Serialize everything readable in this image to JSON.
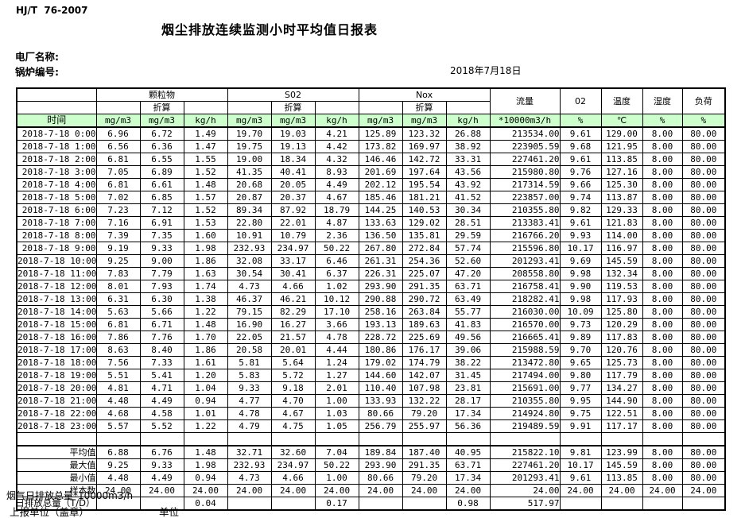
{
  "page": {
    "standard_code": "HJ/T  76-2007",
    "title": "烟尘排放连续监测小时平均值日报表",
    "plant_label": "电厂名称:",
    "boiler_label": "锅炉编号:",
    "date": "2018年7月18日",
    "footer_note": "烟气日排放总量*10000m3/h",
    "report_unit_label": "上报单位（盖章）",
    "unit_label": "单位"
  },
  "colors": {
    "header_green": "#ccffcc",
    "border": "#000000",
    "background": "#ffffff"
  },
  "table": {
    "head": {
      "time": "时间",
      "pm": "颗粒物",
      "so2": "S02",
      "nox": "Nox",
      "flow": "流量",
      "o2": "02",
      "temp": "温度",
      "humidity": "湿度",
      "load": "负荷",
      "converted": "折算"
    },
    "units": [
      "mg/m3",
      "mg/m3",
      "kg/h",
      "mg/m3",
      "mg/m3",
      "kg/h",
      "mg/m3",
      "mg/m3",
      "kg/h",
      "*10000m3/h",
      "%",
      "℃",
      "%",
      "%"
    ],
    "rows": [
      {
        "time": "2018-7-18 0:00",
        "values": [
          "6.96",
          "6.72",
          "1.49",
          "19.70",
          "19.03",
          "4.21",
          "125.89",
          "123.32",
          "26.88",
          "213534.00",
          "9.61",
          "129.00",
          "8.00",
          "80.00"
        ]
      },
      {
        "time": "2018-7-18 1:00",
        "values": [
          "6.56",
          "6.36",
          "1.47",
          "19.75",
          "19.13",
          "4.42",
          "173.82",
          "169.97",
          "38.92",
          "223905.59",
          "9.68",
          "121.95",
          "8.00",
          "80.00"
        ]
      },
      {
        "time": "2018-7-18 2:00",
        "values": [
          "6.81",
          "6.55",
          "1.55",
          "19.00",
          "18.34",
          "4.32",
          "146.46",
          "142.72",
          "33.31",
          "227461.20",
          "9.61",
          "113.85",
          "8.00",
          "80.00"
        ]
      },
      {
        "time": "2018-7-18 3:00",
        "values": [
          "7.05",
          "6.89",
          "1.52",
          "41.35",
          "40.41",
          "8.93",
          "201.69",
          "197.64",
          "43.56",
          "215980.80",
          "9.76",
          "127.16",
          "8.00",
          "80.00"
        ]
      },
      {
        "time": "2018-7-18 4:00",
        "values": [
          "6.81",
          "6.61",
          "1.48",
          "20.68",
          "20.05",
          "4.49",
          "202.12",
          "195.54",
          "43.92",
          "217314.59",
          "9.66",
          "125.30",
          "8.00",
          "80.00"
        ]
      },
      {
        "time": "2018-7-18 5:00",
        "values": [
          "7.02",
          "6.85",
          "1.57",
          "20.87",
          "20.37",
          "4.67",
          "185.46",
          "181.21",
          "41.52",
          "223857.00",
          "9.74",
          "113.87",
          "8.00",
          "80.00"
        ]
      },
      {
        "time": "2018-7-18 6:00",
        "values": [
          "7.23",
          "7.12",
          "1.52",
          "89.34",
          "87.92",
          "18.79",
          "144.25",
          "140.53",
          "30.34",
          "210355.80",
          "9.82",
          "129.33",
          "8.00",
          "80.00"
        ]
      },
      {
        "time": "2018-7-18 7:00",
        "values": [
          "7.16",
          "6.91",
          "1.53",
          "22.80",
          "22.01",
          "4.87",
          "133.63",
          "129.02",
          "28.51",
          "213383.41",
          "9.61",
          "121.83",
          "8.00",
          "80.00"
        ]
      },
      {
        "time": "2018-7-18 8:00",
        "values": [
          "7.39",
          "7.35",
          "1.60",
          "10.91",
          "10.79",
          "2.36",
          "136.50",
          "135.81",
          "29.59",
          "216766.20",
          "9.93",
          "114.00",
          "8.00",
          "80.00"
        ]
      },
      {
        "time": "2018-7-18 9:00",
        "values": [
          "9.19",
          "9.33",
          "1.98",
          "232.93",
          "234.97",
          "50.22",
          "267.80",
          "272.84",
          "57.74",
          "215596.80",
          "10.17",
          "116.97",
          "8.00",
          "80.00"
        ]
      },
      {
        "time": "2018-7-18 10:00",
        "values": [
          "9.25",
          "9.00",
          "1.86",
          "32.08",
          "33.17",
          "6.46",
          "261.31",
          "254.36",
          "52.60",
          "201293.41",
          "9.69",
          "145.59",
          "8.00",
          "80.00"
        ]
      },
      {
        "time": "2018-7-18 11:00",
        "values": [
          "7.83",
          "7.79",
          "1.63",
          "30.54",
          "30.41",
          "6.37",
          "226.31",
          "225.07",
          "47.20",
          "208558.80",
          "9.98",
          "132.34",
          "8.00",
          "80.00"
        ]
      },
      {
        "time": "2018-7-18 12:00",
        "values": [
          "8.01",
          "7.93",
          "1.74",
          "4.73",
          "4.66",
          "1.02",
          "293.90",
          "291.35",
          "63.71",
          "216758.41",
          "9.90",
          "119.53",
          "8.00",
          "80.00"
        ]
      },
      {
        "time": "2018-7-18 13:00",
        "values": [
          "6.31",
          "6.30",
          "1.38",
          "46.37",
          "46.21",
          "10.12",
          "290.88",
          "290.72",
          "63.49",
          "218282.41",
          "9.98",
          "117.93",
          "8.00",
          "80.00"
        ]
      },
      {
        "time": "2018-7-18 14:00",
        "values": [
          "5.63",
          "5.66",
          "1.22",
          "79.15",
          "82.29",
          "17.10",
          "258.16",
          "263.84",
          "55.77",
          "216030.00",
          "10.09",
          "125.80",
          "8.00",
          "80.00"
        ]
      },
      {
        "time": "2018-7-18 15:00",
        "values": [
          "6.81",
          "6.71",
          "1.48",
          "16.90",
          "16.27",
          "3.66",
          "193.13",
          "189.63",
          "41.83",
          "216570.00",
          "9.73",
          "120.29",
          "8.00",
          "80.00"
        ]
      },
      {
        "time": "2018-7-18 16:00",
        "values": [
          "7.86",
          "7.76",
          "1.70",
          "22.05",
          "21.57",
          "4.78",
          "228.72",
          "225.69",
          "49.56",
          "216665.41",
          "9.89",
          "117.83",
          "8.00",
          "80.00"
        ]
      },
      {
        "time": "2018-7-18 17:00",
        "values": [
          "8.63",
          "8.40",
          "1.86",
          "20.58",
          "20.01",
          "4.44",
          "180.86",
          "176.17",
          "39.06",
          "215988.59",
          "9.70",
          "120.76",
          "8.00",
          "80.00"
        ]
      },
      {
        "time": "2018-7-18 18:00",
        "values": [
          "7.56",
          "7.33",
          "1.61",
          "5.81",
          "5.64",
          "1.24",
          "179.02",
          "174.79",
          "38.22",
          "213472.80",
          "9.65",
          "125.73",
          "8.00",
          "80.00"
        ]
      },
      {
        "time": "2018-7-18 19:00",
        "values": [
          "5.51",
          "5.41",
          "1.20",
          "5.83",
          "5.72",
          "1.27",
          "144.60",
          "142.07",
          "31.45",
          "217494.00",
          "9.80",
          "117.79",
          "8.00",
          "80.00"
        ]
      },
      {
        "time": "2018-7-18 20:00",
        "values": [
          "4.81",
          "4.71",
          "1.04",
          "9.33",
          "9.18",
          "2.01",
          "110.40",
          "107.98",
          "23.81",
          "215691.00",
          "9.77",
          "134.27",
          "8.00",
          "80.00"
        ]
      },
      {
        "time": "2018-7-18 21:00",
        "values": [
          "4.48",
          "4.49",
          "0.94",
          "4.77",
          "4.70",
          "1.00",
          "133.93",
          "132.22",
          "28.17",
          "210355.80",
          "9.95",
          "144.90",
          "8.00",
          "80.00"
        ]
      },
      {
        "time": "2018-7-18 22:00",
        "values": [
          "4.68",
          "4.58",
          "1.01",
          "4.78",
          "4.67",
          "1.03",
          "80.66",
          "79.20",
          "17.34",
          "214924.80",
          "9.75",
          "122.51",
          "8.00",
          "80.00"
        ]
      },
      {
        "time": "2018-7-18 23:00",
        "values": [
          "5.57",
          "5.52",
          "1.22",
          "4.79",
          "4.75",
          "1.05",
          "256.79",
          "255.97",
          "56.36",
          "219489.59",
          "9.91",
          "117.17",
          "8.00",
          "80.00"
        ]
      }
    ],
    "summary": [
      {
        "label": "平均值",
        "values": [
          "6.88",
          "6.76",
          "1.48",
          "32.71",
          "32.60",
          "7.04",
          "189.84",
          "187.40",
          "40.95",
          "215822.10",
          "9.81",
          "123.99",
          "8.00",
          "80.00"
        ]
      },
      {
        "label": "最大值",
        "values": [
          "9.25",
          "9.33",
          "1.98",
          "232.93",
          "234.97",
          "50.22",
          "293.90",
          "291.35",
          "63.71",
          "227461.20",
          "10.17",
          "145.59",
          "8.00",
          "80.00"
        ]
      },
      {
        "label": "最小值",
        "values": [
          "4.48",
          "4.49",
          "0.94",
          "4.73",
          "4.66",
          "1.00",
          "80.66",
          "79.20",
          "17.34",
          "201293.41",
          "9.61",
          "113.85",
          "8.00",
          "80.00"
        ]
      },
      {
        "label": "样本数",
        "values": [
          "24.00",
          "24.00",
          "24.00",
          "24.00",
          "24.00",
          "24.00",
          "24.00",
          "24.00",
          "24.00",
          "24.00",
          "24.00",
          "24.00",
          "24.00",
          "24.00"
        ]
      }
    ],
    "total_row": {
      "label": "日排放总量（T/D）",
      "values": [
        "",
        "",
        "0.04",
        "",
        "",
        "0.17",
        "",
        "",
        "0.98",
        "517.97",
        "",
        "",
        "",
        ""
      ]
    }
  }
}
